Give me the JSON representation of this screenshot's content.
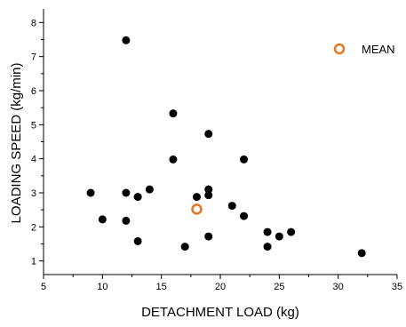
{
  "chart_data": {
    "type": "scatter",
    "xlabel": "DETACHMENT LOAD (kg)",
    "ylabel": "LOADING SPEED (kg/min)",
    "xlim": [
      5,
      35
    ],
    "ylim": [
      0.6,
      8.4
    ],
    "xticks": [
      5,
      10,
      15,
      20,
      25,
      30,
      35
    ],
    "yticks": [
      1,
      2,
      3,
      4,
      5,
      6,
      7,
      8
    ],
    "grid": false,
    "legend_position": "top-right",
    "series": [
      {
        "name": "",
        "marker": "filled-circle",
        "color": "#000000",
        "points": [
          {
            "x": 9,
            "y": 3.0
          },
          {
            "x": 10,
            "y": 2.22
          },
          {
            "x": 12,
            "y": 7.48
          },
          {
            "x": 12,
            "y": 3.0
          },
          {
            "x": 12,
            "y": 2.18
          },
          {
            "x": 13,
            "y": 2.88
          },
          {
            "x": 13,
            "y": 1.58
          },
          {
            "x": 14,
            "y": 3.1
          },
          {
            "x": 16,
            "y": 5.33
          },
          {
            "x": 16,
            "y": 3.98
          },
          {
            "x": 17,
            "y": 1.42
          },
          {
            "x": 18,
            "y": 2.88
          },
          {
            "x": 19,
            "y": 4.73
          },
          {
            "x": 19,
            "y": 3.1
          },
          {
            "x": 19,
            "y": 2.93
          },
          {
            "x": 19,
            "y": 1.72
          },
          {
            "x": 21,
            "y": 2.62
          },
          {
            "x": 22,
            "y": 3.98
          },
          {
            "x": 22,
            "y": 2.32
          },
          {
            "x": 24,
            "y": 1.85
          },
          {
            "x": 24,
            "y": 1.42
          },
          {
            "x": 25,
            "y": 1.72
          },
          {
            "x": 26,
            "y": 1.85
          },
          {
            "x": 32,
            "y": 1.23
          }
        ]
      },
      {
        "name": "MEAN",
        "marker": "open-circle",
        "color": "#e87722",
        "points": [
          {
            "x": 18,
            "y": 2.52
          }
        ]
      }
    ]
  }
}
